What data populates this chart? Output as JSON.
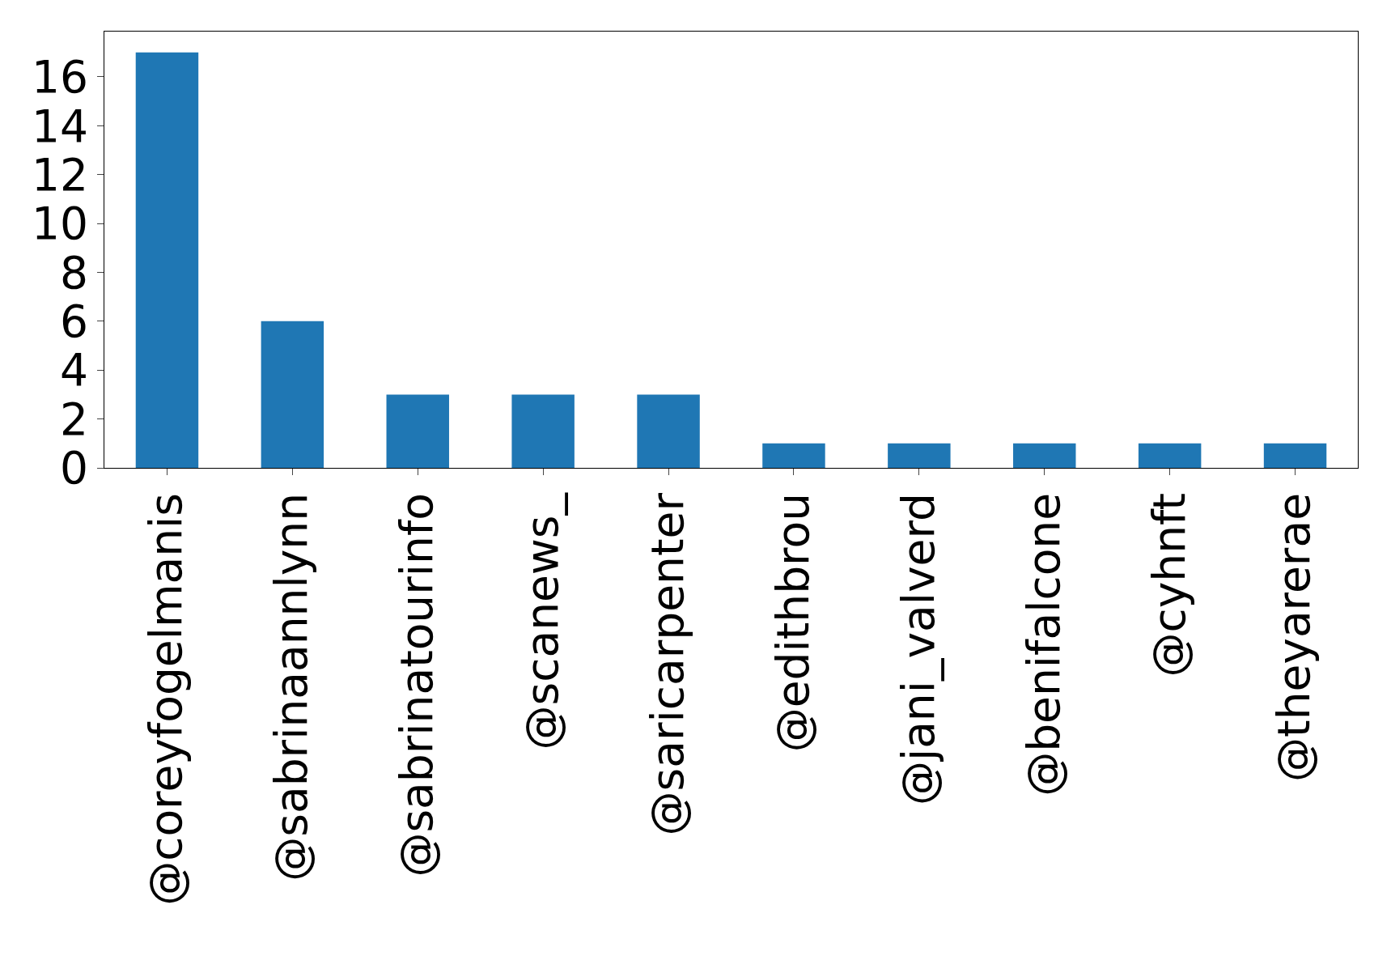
{
  "chart_data": {
    "type": "bar",
    "categories": [
      "@coreyfogelmanis",
      "@sabrinaannlynn",
      "@sabrinatourinfo",
      "@scanews_",
      "@saricarpenter",
      "@edithbrou",
      "@jani_valverd",
      "@benifalcone",
      "@cyhnft",
      "@theyarerae"
    ],
    "values": [
      17,
      6,
      3,
      3,
      3,
      1,
      1,
      1,
      1,
      1
    ],
    "color": "#1f77b4",
    "ylim": [
      0,
      17.85
    ],
    "yticks": [
      0,
      2,
      4,
      6,
      8,
      10,
      12,
      14,
      16
    ],
    "grid": false
  }
}
